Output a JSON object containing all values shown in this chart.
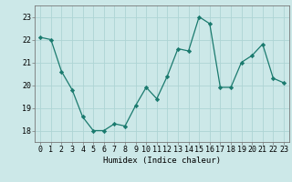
{
  "x": [
    0,
    1,
    2,
    3,
    4,
    5,
    6,
    7,
    8,
    9,
    10,
    11,
    12,
    13,
    14,
    15,
    16,
    17,
    18,
    19,
    20,
    21,
    22,
    23
  ],
  "y": [
    22.1,
    22.0,
    20.6,
    19.8,
    18.6,
    18.0,
    18.0,
    18.3,
    18.2,
    19.1,
    19.9,
    19.4,
    20.4,
    21.6,
    21.5,
    23.0,
    22.7,
    19.9,
    19.9,
    21.0,
    21.3,
    21.8,
    20.3,
    20.1
  ],
  "line_color": "#1a7a6e",
  "marker": "D",
  "marker_size": 2.2,
  "bg_color": "#cce8e8",
  "grid_color": "#aed4d4",
  "xlabel": "Humidex (Indice chaleur)",
  "ylim": [
    17.5,
    23.5
  ],
  "xlim": [
    -0.5,
    23.5
  ],
  "yticks": [
    18,
    19,
    20,
    21,
    22,
    23
  ],
  "xticks": [
    0,
    1,
    2,
    3,
    4,
    5,
    6,
    7,
    8,
    9,
    10,
    11,
    12,
    13,
    14,
    15,
    16,
    17,
    18,
    19,
    20,
    21,
    22,
    23
  ],
  "label_fontsize": 6.5,
  "tick_fontsize": 6.0,
  "linewidth": 0.9
}
